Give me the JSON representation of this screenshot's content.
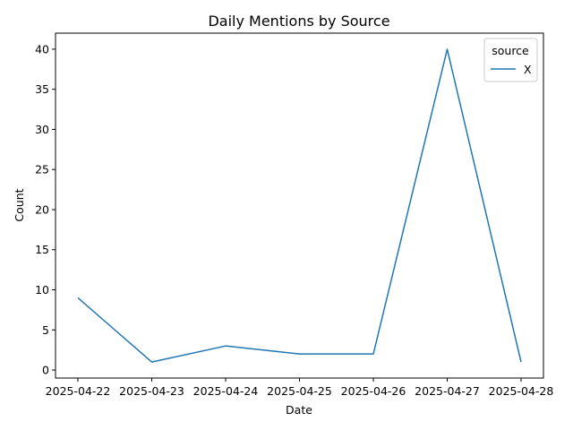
{
  "chart_data": {
    "type": "line",
    "title": "Daily Mentions by Source",
    "xlabel": "Date",
    "ylabel": "Count",
    "x": [
      "2025-04-22",
      "2025-04-23",
      "2025-04-24",
      "2025-04-25",
      "2025-04-26",
      "2025-04-27",
      "2025-04-28"
    ],
    "series": [
      {
        "name": "X",
        "color": "#1f77b4",
        "values": [
          9,
          1,
          3,
          2,
          2,
          40,
          1
        ]
      }
    ],
    "ylim": [
      -1,
      42
    ],
    "yticks": [
      0,
      5,
      10,
      15,
      20,
      25,
      30,
      35,
      40
    ],
    "grid": false,
    "legend": {
      "title": "source",
      "placement": "top-right"
    }
  }
}
